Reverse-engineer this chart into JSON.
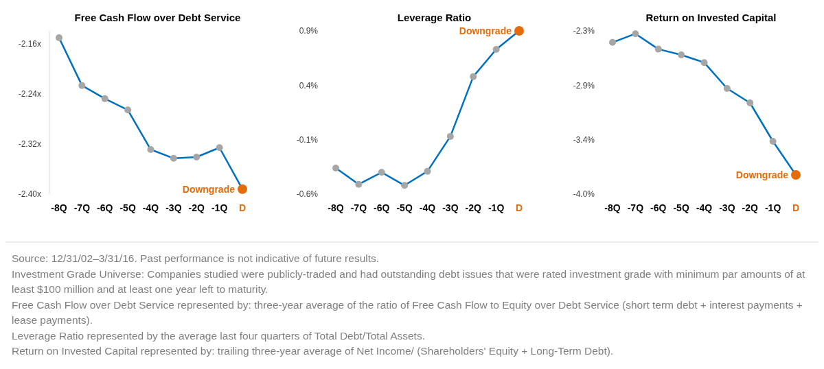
{
  "chart_data": [
    {
      "type": "line",
      "title": "Free Cash Flow over Debt Service",
      "categories": [
        "-8Q",
        "-7Q",
        "-6Q",
        "-5Q",
        "-4Q",
        "-3Q",
        "-2Q",
        "-1Q",
        "D"
      ],
      "series": [
        {
          "color": "#0070c0",
          "values": [
            -2.151,
            -2.227,
            -2.248,
            -2.266,
            -2.329,
            -2.343,
            -2.341,
            -2.326,
            -2.392
          ],
          "colors": [
            "#a6a6a6",
            "#a6a6a6",
            "#a6a6a6",
            "#a6a6a6",
            "#a6a6a6",
            "#a6a6a6",
            "#a6a6a6",
            "#a6a6a6",
            "#e46c0a"
          ]
        }
      ],
      "ylim": [
        -2.4,
        -2.14
      ],
      "yticks": [
        {
          "value": -2.16,
          "label": "-2.16x"
        },
        {
          "value": -2.24,
          "label": "-2.24x"
        },
        {
          "value": -2.32,
          "label": "-2.32x"
        },
        {
          "value": -2.4,
          "label": "-2.40x"
        }
      ],
      "marker": "circle",
      "grid": false,
      "annotations": [
        {
          "text": "Downgrade",
          "x": "D",
          "y": -2.392
        }
      ]
    },
    {
      "type": "line",
      "title": "Leverage Ratio",
      "categories": [
        "-8Q",
        "-7Q",
        "-6Q",
        "-5Q",
        "-4Q",
        "-3Q",
        "-2Q",
        "-1Q",
        "D"
      ],
      "series": [
        {
          "color": "#0070c0",
          "values": [
            -0.36,
            -0.51,
            -0.4,
            -0.52,
            -0.39,
            -0.07,
            0.48,
            0.73,
            0.9
          ],
          "colors": [
            "#a6a6a6",
            "#a6a6a6",
            "#a6a6a6",
            "#a6a6a6",
            "#a6a6a6",
            "#a6a6a6",
            "#a6a6a6",
            "#a6a6a6",
            "#e46c0a"
          ]
        }
      ],
      "ylim": [
        -0.6,
        0.9
      ],
      "yticks": [
        {
          "value": 0.9,
          "label": "0.9%"
        },
        {
          "value": 0.4,
          "label": "0.4%"
        },
        {
          "value": -0.1,
          "label": "-0.1%"
        },
        {
          "value": -0.6,
          "label": "-0.6%"
        }
      ],
      "marker": "circle",
      "grid": false,
      "annotations": [
        {
          "text": "Downgrade",
          "x": "D",
          "y": 0.9
        }
      ]
    },
    {
      "type": "line",
      "title": "Return on Invested Capital",
      "categories": [
        "-8Q",
        "-7Q",
        "-6Q",
        "-5Q",
        "-4Q",
        "-3Q",
        "-2Q",
        "-1Q",
        "D"
      ],
      "series": [
        {
          "color": "#0070c0",
          "values": [
            -2.42,
            -2.33,
            -2.49,
            -2.55,
            -2.63,
            -2.9,
            -3.05,
            -3.45,
            -3.8
          ],
          "colors": [
            "#a6a6a6",
            "#a6a6a6",
            "#a6a6a6",
            "#a6a6a6",
            "#a6a6a6",
            "#a6a6a6",
            "#a6a6a6",
            "#a6a6a6",
            "#e46c0a"
          ]
        }
      ],
      "ylim": [
        -4.0,
        -2.3
      ],
      "yticks": [
        {
          "value": -2.3,
          "label": "-2.3%"
        },
        {
          "value": -2.867,
          "label": "-2.9%"
        },
        {
          "value": -3.433,
          "label": "-3.4%"
        },
        {
          "value": -4.0,
          "label": "-4.0%"
        }
      ],
      "marker": "circle",
      "grid": false,
      "annotations": [
        {
          "text": "Downgrade",
          "x": "D",
          "y": -3.8
        },
        "Source: 12/31/02–3/31/16. Past performance is not indicative of future results.",
        "Investment Grade Universe: Companies studied were publicly-traded and had outstanding debt issues that were rated investment grade with minimum par amounts of at least $100 million and at least one year left to maturity.",
        "Free Cash Flow over Debt Service represented by: three-year average of the ratio of Free Cash Flow to Equity over Debt Service (short term debt + interest payments + lease payments).",
        "Leverage Ratio represented by the average last four quarters of Total Debt/Total Assets.",
        "Return on Invested Capital represented by: trailing three-year average of Net Income/ (Shareholders' Equity + Long-Term Debt)."
      ]
    }
  ]
}
